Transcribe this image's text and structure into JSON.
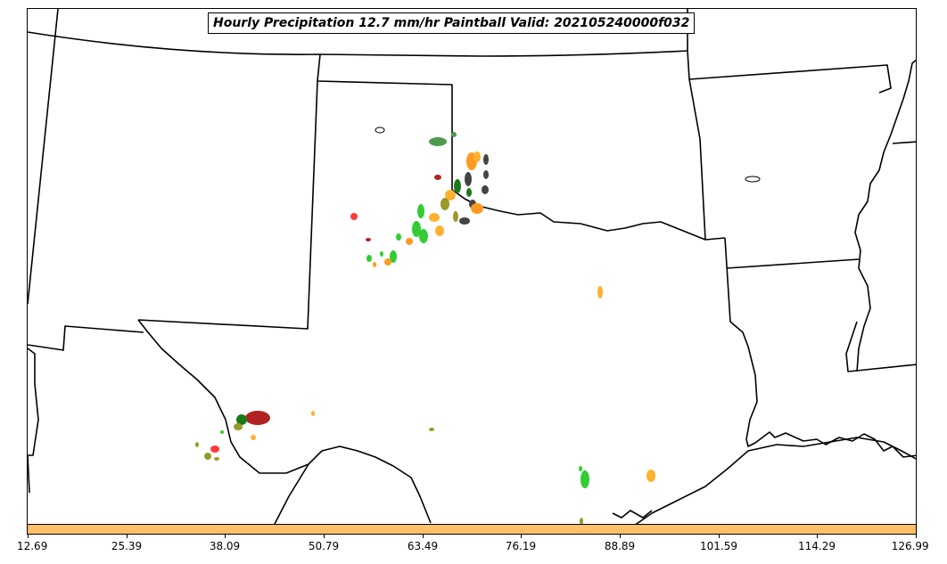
{
  "map": {
    "title": "Hourly Precipitation 12.7 mm/hr Paintball Valid: 202105240000f032",
    "colorbar": {
      "color": "#ffc069",
      "ticks": [
        "12.69",
        "25.39",
        "38.09",
        "50.79",
        "63.49",
        "76.19",
        "88.89",
        "101.59",
        "114.29",
        "126.99"
      ]
    },
    "member_colors": [
      "#ff3a3a",
      "#b22222",
      "#ff9a1f",
      "#ffb030",
      "#33cc33",
      "#1a7a1a",
      "#4d9a4d",
      "#9a9a2a",
      "#444444"
    ]
  }
}
